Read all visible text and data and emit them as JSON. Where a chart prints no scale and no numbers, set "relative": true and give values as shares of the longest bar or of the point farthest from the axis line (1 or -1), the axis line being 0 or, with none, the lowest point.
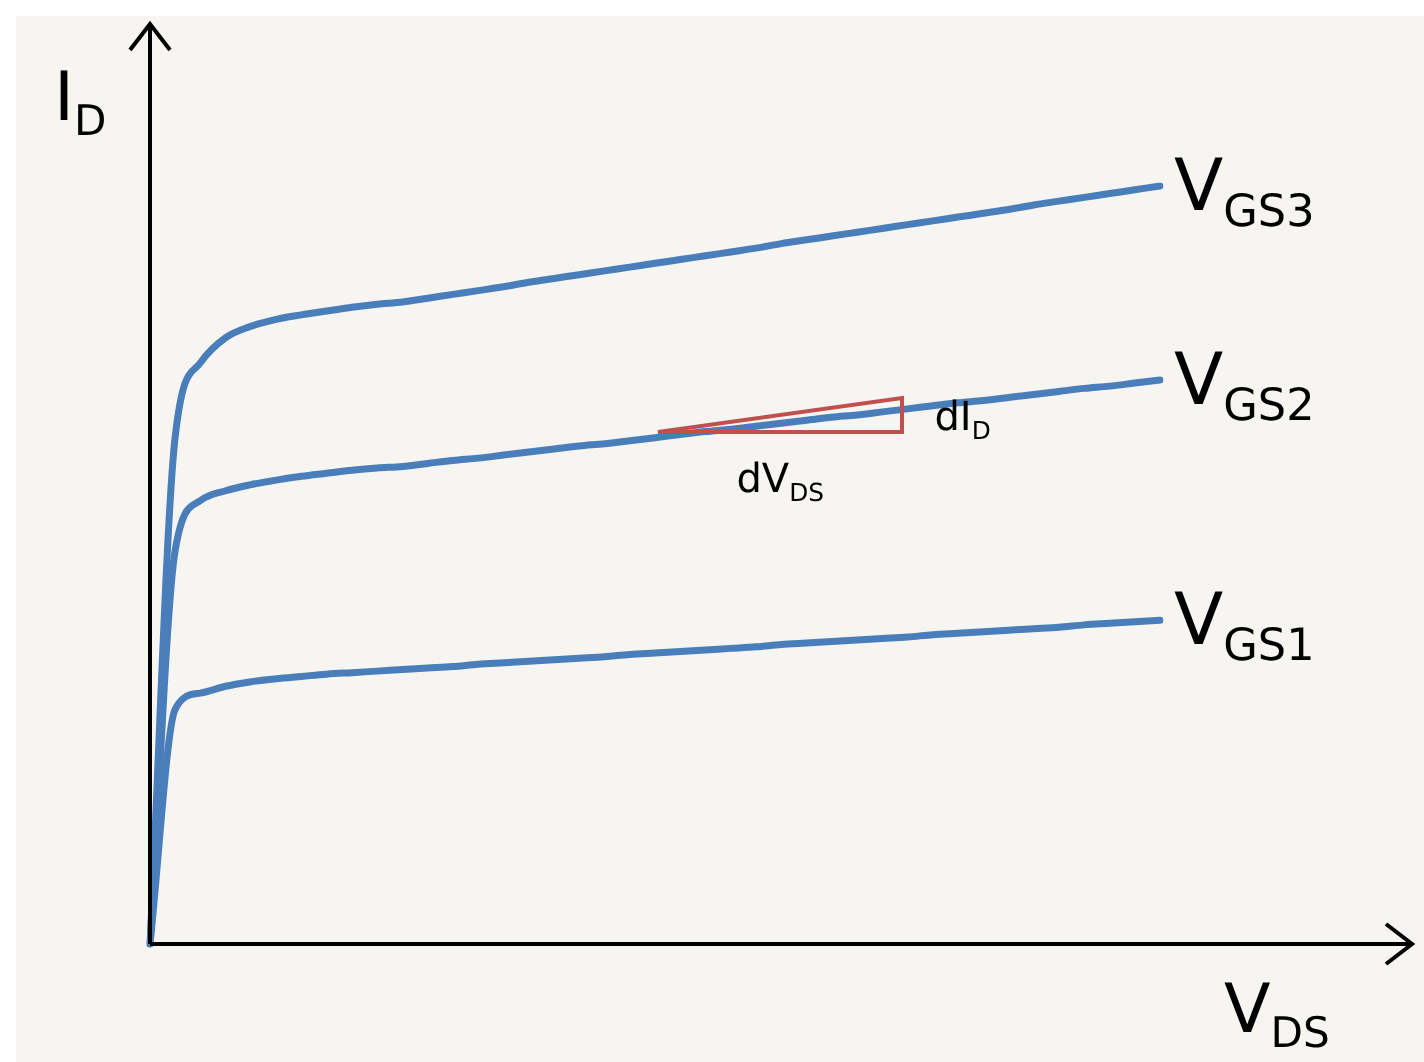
{
  "chart_data": {
    "type": "line",
    "relative": true,
    "xlabel": "V$_{DS}$",
    "ylabel": "I$_{D}$",
    "marker": "none",
    "legend": false,
    "categories": [
      null,
      null,
      null,
      null,
      null,
      null,
      null,
      null,
      null,
      null,
      null,
      null,
      null,
      null,
      null,
      null,
      null,
      null,
      null,
      null,
      null,
      null,
      null,
      null,
      null,
      null,
      null,
      null,
      null,
      null,
      null,
      null,
      null,
      null,
      null,
      null,
      null,
      null,
      null,
      null,
      null
    ],
    "series": [
      {
        "name": "V$_{GS3}$",
        "color": "#4a7ebb",
        "values": [
          0,
          0.67,
          0.767,
          0.8,
          0.815,
          0.824,
          0.83,
          0.835,
          0.84,
          0.844,
          0.847,
          0.852,
          0.857,
          0.862,
          0.867,
          0.873,
          0.878,
          0.883,
          0.888,
          0.893,
          0.898,
          0.903,
          0.908,
          0.913,
          0.918,
          0.924,
          0.929,
          0.934,
          0.939,
          0.944,
          0.949,
          0.954,
          0.959,
          0.964,
          0.969,
          0.975,
          0.98,
          0.985,
          0.99,
          0.995,
          1
        ]
      },
      {
        "name": "V$_{GS2}$",
        "color": "#4a7ebb",
        "values": [
          0,
          0.52,
          0.585,
          0.598,
          0.606,
          0.612,
          0.617,
          0.621,
          0.625,
          0.628,
          0.63,
          0.634,
          0.638,
          0.641,
          0.645,
          0.649,
          0.653,
          0.657,
          0.66,
          0.664,
          0.668,
          0.672,
          0.676,
          0.679,
          0.683,
          0.687,
          0.691,
          0.695,
          0.698,
          0.702,
          0.706,
          0.71,
          0.714,
          0.717,
          0.721,
          0.725,
          0.729,
          0.733,
          0.736,
          0.74,
          0.744
        ]
      },
      {
        "name": "V$_{GS1}$",
        "color": "#4a7ebb",
        "values": [
          0,
          0.31,
          0.331,
          0.34,
          0.346,
          0.35,
          0.353,
          0.356,
          0.358,
          0.36,
          0.362,
          0.364,
          0.366,
          0.369,
          0.371,
          0.373,
          0.375,
          0.377,
          0.379,
          0.382,
          0.384,
          0.386,
          0.388,
          0.39,
          0.392,
          0.395,
          0.397,
          0.399,
          0.401,
          0.403,
          0.405,
          0.408,
          0.41,
          0.412,
          0.414,
          0.416,
          0.418,
          0.421,
          0.423,
          0.425,
          0.427
        ]
      }
    ],
    "annotations": [
      "dV$_{DS}$",
      "dI$_{D}$"
    ]
  }
}
